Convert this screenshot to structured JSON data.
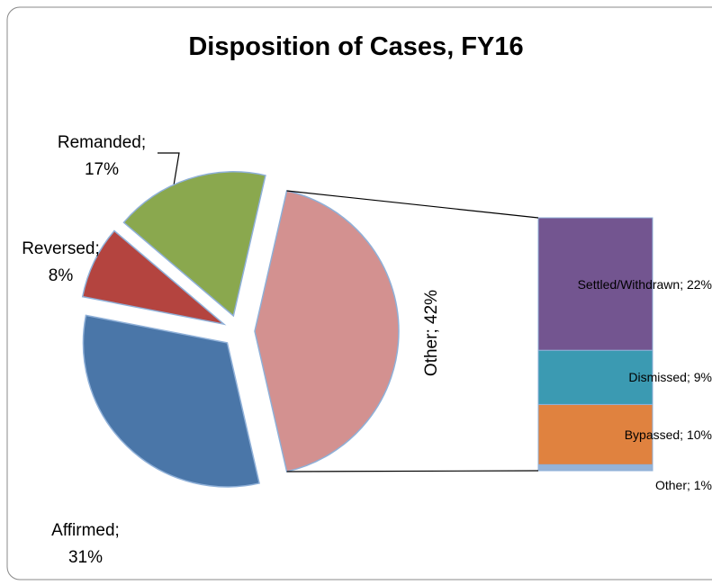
{
  "chart_data": {
    "type": "pie",
    "title": "Disposition of Cases, FY16",
    "values": [
      31,
      8,
      17,
      42
    ],
    "value_labels": [
      "Affirmed; 31%",
      "Reversed; 8%",
      "Remanded; 17%",
      "Other; 42%"
    ],
    "colors": [
      "#4a76a8",
      "#b4443f",
      "#8aa84e",
      "#d39190"
    ],
    "bar": {
      "values": [
        1,
        10,
        9,
        22
      ],
      "value_labels": [
        "Other; 1%",
        "Bypassed; 10%",
        "Dismissed; 9%",
        "Settled/Withdrawn; 22%"
      ],
      "colors": [
        "#95b3d7",
        "#e0823f",
        "#3b9ab2",
        "#735590"
      ]
    }
  }
}
